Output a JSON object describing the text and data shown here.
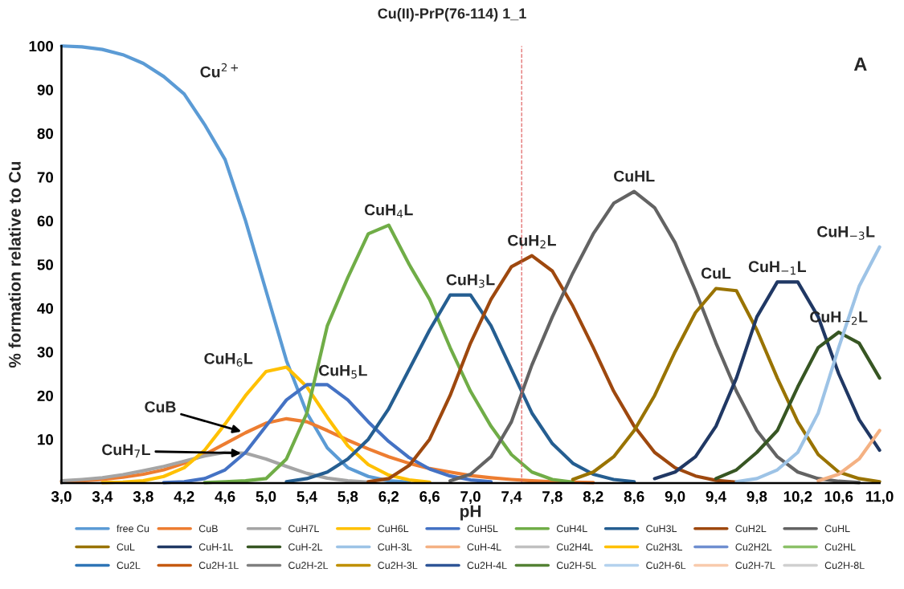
{
  "chart_data": {
    "type": "line",
    "title": "Cu(II)-PrP(76-114) 1_1",
    "xlabel": "pH",
    "ylabel": "% formation relative to Cu",
    "x": [
      3.0,
      3.2,
      3.4,
      3.6,
      3.8,
      4.0,
      4.2,
      4.4,
      4.6,
      4.8,
      5.0,
      5.2,
      5.4,
      5.6,
      5.8,
      6.0,
      6.2,
      6.4,
      6.6,
      6.8,
      7.0,
      7.2,
      7.4,
      7.6,
      7.8,
      8.0,
      8.2,
      8.4,
      8.6,
      8.8,
      9.0,
      9.2,
      9.4,
      9.6,
      9.8,
      10.0,
      10.2,
      10.4,
      10.6,
      10.8,
      11.0
    ],
    "xlim": [
      3.0,
      11.0
    ],
    "xticks": [
      {
        "value": 3.0,
        "label": "3,0"
      },
      {
        "value": 3.4,
        "label": "3,4"
      },
      {
        "value": 3.8,
        "label": "3,8"
      },
      {
        "value": 4.2,
        "label": "4,2"
      },
      {
        "value": 4.6,
        "label": "4,6"
      },
      {
        "value": 5.0,
        "label": "5,0"
      },
      {
        "value": 5.4,
        "label": "5,4"
      },
      {
        "value": 5.8,
        "label": "5,8"
      },
      {
        "value": 6.2,
        "label": "6,2"
      },
      {
        "value": 6.6,
        "label": "6,6"
      },
      {
        "value": 7.0,
        "label": "7,0"
      },
      {
        "value": 7.4,
        "label": "7,4"
      },
      {
        "value": 7.8,
        "label": "7,8"
      },
      {
        "value": 8.2,
        "label": "8,2"
      },
      {
        "value": 8.6,
        "label": "8,6"
      },
      {
        "value": 9.0,
        "label": "9,0"
      },
      {
        "value": 9.4,
        "label": "9,4"
      },
      {
        "value": 9.8,
        "label": "9,8"
      },
      {
        "value": 10.2,
        "label": "10,2"
      },
      {
        "value": 10.6,
        "label": "10,6"
      },
      {
        "value": 11.0,
        "label": "11,0"
      }
    ],
    "ylim": [
      0,
      100
    ],
    "yticks": [
      10,
      20,
      30,
      40,
      50,
      60,
      70,
      80,
      90,
      100
    ],
    "grid": false,
    "legend": "bottom",
    "ref_lines": [
      {
        "axis": "x",
        "value": 7.5,
        "color": "#e06666",
        "line_style": "dashed"
      }
    ],
    "annotations": [
      {
        "text": "Cu$^{2+}$",
        "x": 4.2,
        "y": 89
      },
      {
        "text": "CuB",
        "x": 4.8,
        "y": 11.5
      },
      {
        "text": "CuH$_{7}$L",
        "x": 4.8,
        "y": 6.8
      },
      {
        "text": "CuH$_{6}$L",
        "x": 5.2,
        "y": 26.5
      },
      {
        "text": "CuH$_{5}$L",
        "x": 5.6,
        "y": 22.5
      },
      {
        "text": "CuH$_{4}$L",
        "x": 6.2,
        "y": 59
      },
      {
        "text": "CuH$_{3}$L",
        "x": 7.0,
        "y": 43
      },
      {
        "text": "CuH$_{2}$L",
        "x": 7.6,
        "y": 52
      },
      {
        "text": "CuHL",
        "x": 8.6,
        "y": 66.7
      },
      {
        "text": "CuL",
        "x": 9.4,
        "y": 44.5
      },
      {
        "text": "CuH$_{−1}$L",
        "x": 10.0,
        "y": 46
      },
      {
        "text": "CuH$_{−3}$L",
        "x": 11.0,
        "y": 54
      },
      {
        "text": "CuH$_{−2}$L",
        "x": 10.6,
        "y": 34.5
      },
      "A"
    ],
    "series": [
      {
        "name": "free Cu",
        "color": "#5b9bd5",
        "values": [
          100,
          99.8,
          99.2,
          98,
          96,
          93,
          89,
          82,
          74,
          60,
          44,
          28,
          16,
          8,
          3.5,
          1.5,
          0.5,
          0.2,
          null,
          null,
          null,
          null,
          null,
          null,
          null,
          null,
          null,
          null,
          null,
          null,
          null,
          null,
          null,
          null,
          null,
          null,
          null,
          null,
          null,
          null,
          null
        ]
      },
      {
        "name": "CuB",
        "color": "#ed7d31",
        "values": [
          0.3,
          0.5,
          0.8,
          1.3,
          2,
          3,
          4.5,
          6.5,
          9,
          11.5,
          13.7,
          14.7,
          14,
          12,
          9.8,
          7.8,
          6,
          4.5,
          3.3,
          2.5,
          1.7,
          1.2,
          0.8,
          0.5,
          0.3,
          0.2,
          0.1,
          null,
          null,
          null,
          null,
          null,
          null,
          null,
          null,
          null,
          null,
          null,
          null,
          null,
          null
        ]
      },
      {
        "name": "CuH7L",
        "color": "#a5a5a5",
        "values": [
          0.5,
          0.8,
          1.2,
          1.9,
          2.8,
          3.8,
          5,
          6.2,
          7,
          6.8,
          5.5,
          3.8,
          2.2,
          1.1,
          0.5,
          0.2,
          null,
          null,
          null,
          null,
          null,
          null,
          null,
          null,
          null,
          null,
          null,
          null,
          null,
          null,
          null,
          null,
          null,
          null,
          null,
          null,
          null,
          null,
          null,
          null,
          null
        ]
      },
      {
        "name": "CuH6L",
        "color": "#ffc000",
        "values": [
          null,
          null,
          0.1,
          0.2,
          0.5,
          1.5,
          3.5,
          7.5,
          13.5,
          20,
          25.5,
          26.5,
          22,
          15,
          8.5,
          4.2,
          1.8,
          0.7,
          0.2,
          null,
          null,
          null,
          null,
          null,
          null,
          null,
          null,
          null,
          null,
          null,
          null,
          null,
          null,
          null,
          null,
          null,
          null,
          null,
          null,
          null,
          null
        ]
      },
      {
        "name": "CuH5L",
        "color": "#4472c4",
        "values": [
          null,
          null,
          null,
          null,
          null,
          0.1,
          0.3,
          1,
          3,
          7,
          13,
          19,
          22.5,
          22.5,
          19,
          14,
          9.5,
          5.8,
          3.2,
          1.6,
          0.7,
          0.3,
          null,
          null,
          null,
          null,
          null,
          null,
          null,
          null,
          null,
          null,
          null,
          null,
          null,
          null,
          null,
          null,
          null,
          null,
          null
        ]
      },
      {
        "name": "CuH4L",
        "color": "#70ad47",
        "values": [
          null,
          null,
          null,
          null,
          null,
          null,
          null,
          0.1,
          0.3,
          0.5,
          1,
          5.5,
          16,
          36,
          47,
          57,
          59,
          50,
          42,
          31,
          21,
          13,
          6.5,
          2.5,
          0.8,
          0.2,
          null,
          null,
          null,
          null,
          null,
          null,
          null,
          null,
          null,
          null,
          null,
          null,
          null,
          null,
          null
        ]
      },
      {
        "name": "CuH3L",
        "color": "#255e91",
        "values": [
          null,
          null,
          null,
          null,
          null,
          null,
          null,
          null,
          null,
          null,
          null,
          0.3,
          1,
          2.5,
          5.5,
          10,
          17,
          26,
          35,
          43,
          43,
          36,
          26,
          16,
          9,
          4.5,
          2,
          0.8,
          0.3,
          null,
          null,
          null,
          null,
          null,
          null,
          null,
          null,
          null,
          null,
          null,
          null
        ]
      },
      {
        "name": "CuH2L",
        "color": "#9e480e",
        "values": [
          null,
          null,
          null,
          null,
          null,
          null,
          null,
          null,
          null,
          null,
          null,
          null,
          null,
          null,
          null,
          0.3,
          1,
          4,
          10,
          20,
          32,
          42,
          49.5,
          52,
          48.5,
          40.5,
          31,
          21,
          13,
          7,
          3.5,
          1.6,
          0.6,
          0.2,
          null,
          null,
          null,
          null,
          null,
          null,
          null
        ]
      },
      {
        "name": "CuHL",
        "color": "#636363",
        "values": [
          null,
          null,
          null,
          null,
          null,
          null,
          null,
          null,
          null,
          null,
          null,
          null,
          null,
          null,
          null,
          null,
          null,
          null,
          null,
          0.5,
          2,
          6,
          14,
          27,
          38,
          48,
          57,
          64,
          66.7,
          63,
          55,
          44,
          32,
          21,
          12,
          6,
          2.5,
          1,
          0.4,
          0.1,
          null
        ]
      },
      {
        "name": "CuL",
        "color": "#997300",
        "values": [
          null,
          null,
          null,
          null,
          null,
          null,
          null,
          null,
          null,
          null,
          null,
          null,
          null,
          null,
          null,
          null,
          null,
          null,
          null,
          null,
          null,
          null,
          null,
          null,
          null,
          0.8,
          2.5,
          6,
          12,
          20,
          30,
          39,
          44.5,
          44,
          35,
          24,
          14,
          6.5,
          2.5,
          1,
          0.3
        ]
      },
      {
        "name": "CuH-1L",
        "color": "#203864",
        "values": [
          null,
          null,
          null,
          null,
          null,
          null,
          null,
          null,
          null,
          null,
          null,
          null,
          null,
          null,
          null,
          null,
          null,
          null,
          null,
          null,
          null,
          null,
          null,
          null,
          null,
          null,
          null,
          null,
          null,
          1,
          2.5,
          6,
          13,
          24,
          38,
          46,
          46,
          38,
          25,
          14.5,
          7.5
        ]
      },
      {
        "name": "CuH-2L",
        "color": "#375623",
        "values": [
          null,
          null,
          null,
          null,
          null,
          null,
          null,
          null,
          null,
          null,
          null,
          null,
          null,
          null,
          null,
          null,
          null,
          null,
          null,
          null,
          null,
          null,
          null,
          null,
          null,
          null,
          null,
          null,
          null,
          null,
          null,
          null,
          1,
          3,
          7,
          12,
          22,
          31,
          34.5,
          32,
          24
        ]
      },
      {
        "name": "CuH-3L",
        "color": "#9dc3e6",
        "values": [
          null,
          null,
          null,
          null,
          null,
          null,
          null,
          null,
          null,
          null,
          null,
          null,
          null,
          null,
          null,
          null,
          null,
          null,
          null,
          null,
          null,
          null,
          null,
          null,
          null,
          null,
          null,
          null,
          null,
          null,
          null,
          null,
          null,
          0.3,
          1,
          3,
          7,
          16,
          31,
          45,
          54
        ]
      },
      {
        "name": "CuH-4L",
        "color": "#f4b183",
        "values": [
          null,
          null,
          null,
          null,
          null,
          null,
          null,
          null,
          null,
          null,
          null,
          null,
          null,
          null,
          null,
          null,
          null,
          null,
          null,
          null,
          null,
          null,
          null,
          null,
          null,
          null,
          null,
          null,
          null,
          null,
          null,
          null,
          null,
          null,
          null,
          null,
          null,
          0.5,
          2,
          5.5,
          12
        ]
      },
      {
        "name": "Cu2H4L",
        "color": "#c0c0c0",
        "values": [
          null,
          null,
          null,
          null,
          null,
          null,
          null,
          null,
          null,
          null,
          null,
          null,
          null,
          null,
          null,
          null,
          null,
          null,
          null,
          null,
          null,
          null,
          null,
          null,
          null,
          null,
          null,
          null,
          null,
          null,
          null,
          null,
          null,
          null,
          null,
          null,
          null,
          null,
          null,
          null,
          null
        ]
      },
      {
        "name": "Cu2H3L",
        "color": "#ffc000",
        "values": [
          null,
          null,
          null,
          null,
          null,
          null,
          null,
          null,
          null,
          null,
          null,
          null,
          null,
          null,
          null,
          null,
          null,
          null,
          null,
          null,
          null,
          null,
          null,
          null,
          null,
          null,
          null,
          null,
          null,
          null,
          null,
          null,
          null,
          null,
          null,
          null,
          null,
          null,
          null,
          null,
          null
        ]
      },
      {
        "name": "Cu2H2L",
        "color": "#6f8fd0",
        "values": [
          null,
          null,
          null,
          null,
          null,
          null,
          null,
          null,
          null,
          null,
          null,
          null,
          null,
          null,
          null,
          null,
          null,
          null,
          null,
          null,
          null,
          null,
          null,
          null,
          null,
          null,
          null,
          null,
          null,
          null,
          null,
          null,
          null,
          null,
          null,
          null,
          null,
          null,
          null,
          null,
          null
        ]
      },
      {
        "name": "Cu2HL",
        "color": "#8cc168",
        "values": [
          null,
          null,
          null,
          null,
          null,
          null,
          null,
          null,
          null,
          null,
          null,
          null,
          null,
          null,
          null,
          null,
          null,
          null,
          null,
          null,
          null,
          null,
          null,
          null,
          null,
          null,
          null,
          null,
          null,
          null,
          null,
          null,
          null,
          null,
          null,
          null,
          null,
          null,
          null,
          null,
          null
        ]
      },
      {
        "name": "Cu2L",
        "color": "#2e75b6",
        "values": [
          null,
          null,
          null,
          null,
          null,
          null,
          null,
          null,
          null,
          null,
          null,
          null,
          null,
          null,
          null,
          null,
          null,
          null,
          null,
          null,
          null,
          null,
          null,
          null,
          null,
          null,
          null,
          null,
          null,
          null,
          null,
          null,
          null,
          null,
          null,
          null,
          null,
          null,
          null,
          null,
          null
        ]
      },
      {
        "name": "Cu2H-1L",
        "color": "#c55a11",
        "values": [
          null,
          null,
          null,
          null,
          null,
          null,
          null,
          null,
          null,
          null,
          null,
          null,
          null,
          null,
          null,
          null,
          null,
          null,
          null,
          null,
          null,
          null,
          null,
          null,
          null,
          null,
          null,
          null,
          null,
          null,
          null,
          null,
          null,
          null,
          null,
          null,
          null,
          null,
          null,
          null,
          null
        ]
      },
      {
        "name": "Cu2H-2L",
        "color": "#7f7f7f",
        "values": [
          null,
          null,
          null,
          null,
          null,
          null,
          null,
          null,
          null,
          null,
          null,
          null,
          null,
          null,
          null,
          null,
          null,
          null,
          null,
          null,
          null,
          null,
          null,
          null,
          null,
          null,
          null,
          null,
          null,
          null,
          null,
          null,
          null,
          null,
          null,
          null,
          null,
          null,
          null,
          null,
          null
        ]
      },
      {
        "name": "Cu2H-3L",
        "color": "#bf9000",
        "values": [
          null,
          null,
          null,
          null,
          null,
          null,
          null,
          null,
          null,
          null,
          null,
          null,
          null,
          null,
          null,
          null,
          null,
          null,
          null,
          null,
          null,
          null,
          null,
          null,
          null,
          null,
          null,
          null,
          null,
          null,
          null,
          null,
          null,
          null,
          null,
          null,
          null,
          null,
          null,
          null,
          null
        ]
      },
      {
        "name": "Cu2H-4L",
        "color": "#2f5597",
        "values": [
          null,
          null,
          null,
          null,
          null,
          null,
          null,
          null,
          null,
          null,
          null,
          null,
          null,
          null,
          null,
          null,
          null,
          null,
          null,
          null,
          null,
          null,
          null,
          null,
          null,
          null,
          null,
          null,
          null,
          null,
          null,
          null,
          null,
          null,
          null,
          null,
          null,
          null,
          null,
          null,
          null
        ]
      },
      {
        "name": "Cu2H-5L",
        "color": "#548235",
        "values": [
          null,
          null,
          null,
          null,
          null,
          null,
          null,
          null,
          null,
          null,
          null,
          null,
          null,
          null,
          null,
          null,
          null,
          null,
          null,
          null,
          null,
          null,
          null,
          null,
          null,
          null,
          null,
          null,
          null,
          null,
          null,
          null,
          null,
          null,
          null,
          null,
          null,
          null,
          null,
          null,
          null
        ]
      },
      {
        "name": "Cu2H-6L",
        "color": "#b4d2ee",
        "values": [
          null,
          null,
          null,
          null,
          null,
          null,
          null,
          null,
          null,
          null,
          null,
          null,
          null,
          null,
          null,
          null,
          null,
          null,
          null,
          null,
          null,
          null,
          null,
          null,
          null,
          null,
          null,
          null,
          null,
          null,
          null,
          null,
          null,
          null,
          null,
          null,
          null,
          null,
          null,
          null,
          null
        ]
      },
      {
        "name": "Cu2H-7L",
        "color": "#f8cbad",
        "values": [
          null,
          null,
          null,
          null,
          null,
          null,
          null,
          null,
          null,
          null,
          null,
          null,
          null,
          null,
          null,
          null,
          null,
          null,
          null,
          null,
          null,
          null,
          null,
          null,
          null,
          null,
          null,
          null,
          null,
          null,
          null,
          null,
          null,
          null,
          null,
          null,
          null,
          null,
          null,
          null,
          null
        ]
      },
      {
        "name": "Cu2H-8L",
        "color": "#d0d0d0",
        "values": [
          null,
          null,
          null,
          null,
          null,
          null,
          null,
          null,
          null,
          null,
          null,
          null,
          null,
          null,
          null,
          null,
          null,
          null,
          null,
          null,
          null,
          null,
          null,
          null,
          null,
          null,
          null,
          null,
          null,
          null,
          null,
          null,
          null,
          null,
          null,
          null,
          null,
          null,
          null,
          null,
          null
        ]
      }
    ]
  }
}
